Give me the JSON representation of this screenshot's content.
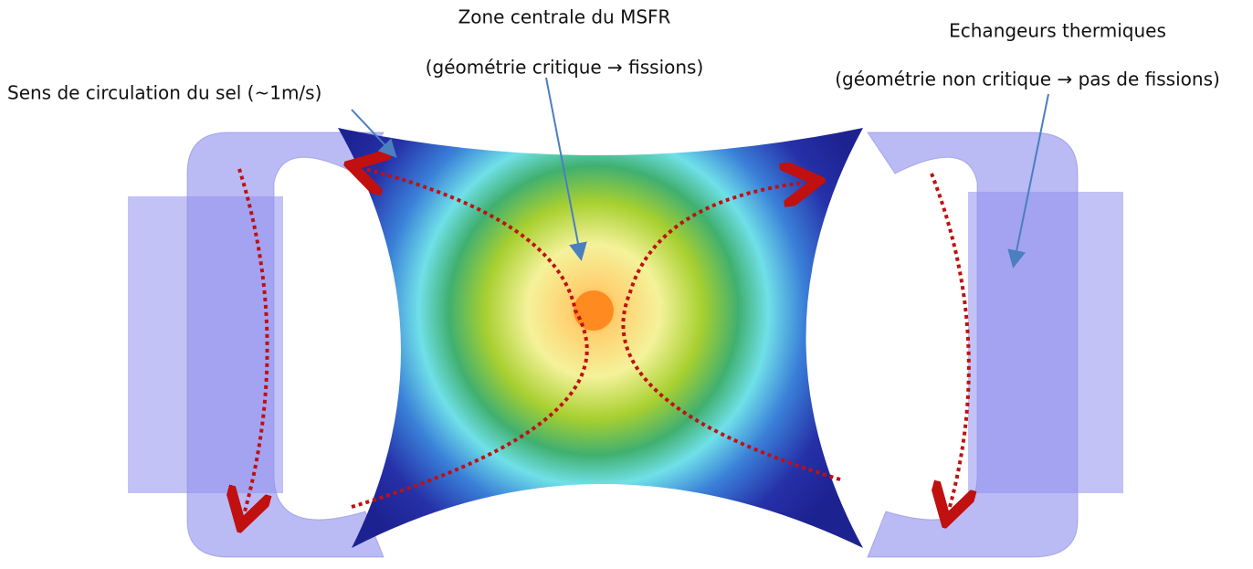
{
  "labels": {
    "center_title": "Zone centrale du MSFR",
    "center_subtitle": "(géométrie critique → fissions)",
    "exchanger_title": "Echangeurs thermiques",
    "exchanger_subtitle": "(géométrie non critique → pas de fissions)",
    "flow": "Sens de circulation du sel (~1m/s)"
  }
}
